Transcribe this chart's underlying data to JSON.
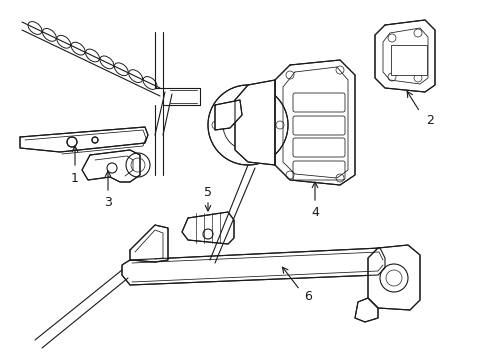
{
  "background_color": "#ffffff",
  "line_color": "#1a1a1a",
  "line_width": 0.8,
  "label_color": "#000000",
  "figsize": [
    4.89,
    3.6
  ],
  "dpi": 100
}
